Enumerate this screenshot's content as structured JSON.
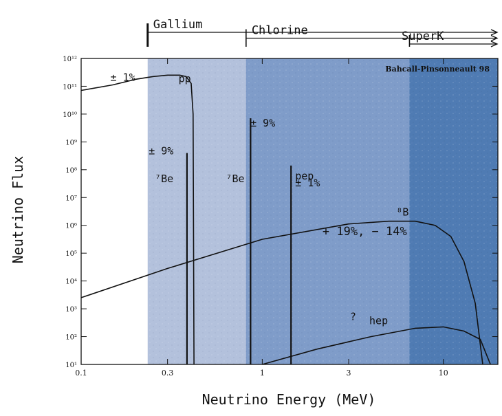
{
  "chart_data": {
    "type": "line",
    "title": "",
    "xlabel": "Neutrino Energy (MeV)",
    "ylabel": "Neutrino Flux",
    "xscale": "log",
    "yscale": "log",
    "xlim": [
      0.1,
      20
    ],
    "ylim_exponents": [
      1,
      12
    ],
    "credit": "Bahcall-Pinsonneault 98",
    "x_ticks": [
      {
        "value": 0.1,
        "label": "0.1"
      },
      {
        "value": 0.3,
        "label": "0.3"
      },
      {
        "value": 1,
        "label": "1"
      },
      {
        "value": 3,
        "label": "3"
      },
      {
        "value": 10,
        "label": "10"
      }
    ],
    "y_ticks": [
      {
        "exp": 1,
        "label": "10¹"
      },
      {
        "exp": 2,
        "label": "10²"
      },
      {
        "exp": 3,
        "label": "10³"
      },
      {
        "exp": 4,
        "label": "10⁴"
      },
      {
        "exp": 5,
        "label": "10⁵"
      },
      {
        "exp": 6,
        "label": "10⁶"
      },
      {
        "exp": 7,
        "label": "10⁷"
      },
      {
        "exp": 8,
        "label": "10⁸"
      },
      {
        "exp": 9,
        "label": "10⁹"
      },
      {
        "exp": 10,
        "label": "10¹⁰"
      },
      {
        "exp": 11,
        "label": "10¹¹"
      },
      {
        "exp": 12,
        "label": "10¹²"
      }
    ],
    "regions": [
      {
        "from": 0.233,
        "to": 20,
        "color": "#b3c1dc"
      },
      {
        "from": 0.814,
        "to": 20,
        "color": "#7f9cc9"
      },
      {
        "from": 6.5,
        "to": 20,
        "color": "#4f7bb3"
      }
    ],
    "thresholds": [
      {
        "label": "Gallium",
        "from": 0.233
      },
      {
        "label": "Chlorine",
        "from": 0.814
      },
      {
        "label": "SuperK",
        "from": 6.5
      }
    ],
    "series": [
      {
        "name": "pp",
        "kind": "curve",
        "points": [
          [
            0.1,
            10.85
          ],
          [
            0.15,
            11.05
          ],
          [
            0.2,
            11.25
          ],
          [
            0.25,
            11.35
          ],
          [
            0.3,
            11.4
          ],
          [
            0.35,
            11.4
          ],
          [
            0.38,
            11.35
          ],
          [
            0.405,
            11.1
          ],
          [
            0.415,
            10.0
          ],
          [
            0.42,
            1
          ]
        ]
      },
      {
        "name": "⁷Be",
        "kind": "line",
        "x": 0.384,
        "peak_exp": 8.6
      },
      {
        "name": "⁷Be",
        "kind": "line",
        "x": 0.862,
        "peak_exp": 9.85
      },
      {
        "name": "pep",
        "kind": "line",
        "x": 1.442,
        "peak_exp": 8.15
      },
      {
        "name": "⁸B",
        "kind": "curve",
        "points": [
          [
            0.1,
            3.4
          ],
          [
            0.3,
            4.45
          ],
          [
            1,
            5.5
          ],
          [
            3,
            6.05
          ],
          [
            5,
            6.15
          ],
          [
            7,
            6.15
          ],
          [
            9,
            6.0
          ],
          [
            11,
            5.6
          ],
          [
            13,
            4.7
          ],
          [
            15,
            3.2
          ],
          [
            16.5,
            1
          ]
        ]
      },
      {
        "name": "hep",
        "kind": "curve",
        "points": [
          [
            1.0,
            1
          ],
          [
            2,
            1.55
          ],
          [
            4,
            2.0
          ],
          [
            7,
            2.3
          ],
          [
            10,
            2.35
          ],
          [
            13,
            2.2
          ],
          [
            16,
            1.9
          ],
          [
            18.2,
            1
          ]
        ]
      }
    ],
    "annotations": [
      {
        "text": "± 1%",
        "x": 0.145,
        "y": 11.2
      },
      {
        "text": "pp",
        "x": 0.345,
        "y": 11.15
      },
      {
        "text": "± 9%",
        "x": 0.236,
        "y": 8.55
      },
      {
        "text": "⁷Be",
        "x": 0.255,
        "y": 7.55
      },
      {
        "text": "± 9%",
        "x": 0.86,
        "y": 9.55
      },
      {
        "text": "⁷Be",
        "x": 0.63,
        "y": 7.55
      },
      {
        "text": "pep",
        "x": 1.52,
        "y": 7.65
      },
      {
        "text": "± 1%",
        "x": 1.52,
        "y": 7.4
      },
      {
        "text": "⁸B",
        "x": 5.5,
        "y": 6.35
      },
      {
        "text": "+ 19%, − 14%",
        "x": 2.15,
        "y": 5.65
      },
      {
        "text": "?",
        "x": 3.05,
        "y": 2.6
      },
      {
        "text": "hep",
        "x": 3.9,
        "y": 2.45
      }
    ]
  }
}
